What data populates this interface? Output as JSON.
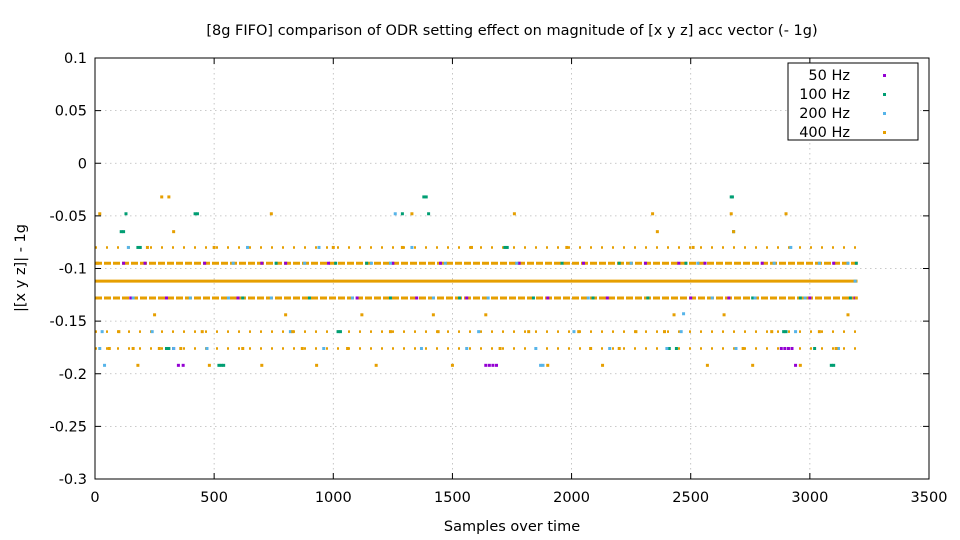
{
  "chart_data": {
    "type": "scatter",
    "title": "[8g FIFO] comparison of ODR setting effect on magnitude of [x y z] acc vector (- 1g)",
    "xlabel": "Samples over time",
    "ylabel": "|[x y z]| - 1g",
    "xlim": [
      0,
      3500
    ],
    "ylim": [
      -0.3,
      0.1
    ],
    "x_ticks": [
      0,
      500,
      1000,
      1500,
      2000,
      2500,
      3000,
      3500
    ],
    "y_ticks": [
      0.1,
      0.05,
      0,
      -0.05,
      -0.1,
      -0.15,
      -0.2,
      -0.25,
      -0.3
    ],
    "x_tick_labels": [
      "0",
      "500",
      "1000",
      "1500",
      "2000",
      "2500",
      "3000",
      "3500"
    ],
    "y_tick_labels": [
      "0.1",
      "0.05",
      "0",
      "-0.05",
      "-0.1",
      "-0.15",
      "-0.2",
      "-0.25",
      "-0.3"
    ],
    "grid": true,
    "legend_position": "top-right",
    "series": [
      {
        "name": "50 Hz",
        "color": "#9400d3",
        "points": [
          [
            120,
            -0.095
          ],
          [
            150,
            -0.128
          ],
          [
            210,
            -0.095
          ],
          [
            300,
            -0.128
          ],
          [
            330,
            -0.176
          ],
          [
            350,
            -0.192
          ],
          [
            370,
            -0.192
          ],
          [
            460,
            -0.095
          ],
          [
            600,
            -0.128
          ],
          [
            700,
            -0.095
          ],
          [
            800,
            -0.095
          ],
          [
            980,
            -0.095
          ],
          [
            1100,
            -0.128
          ],
          [
            1250,
            -0.095
          ],
          [
            1350,
            -0.128
          ],
          [
            1450,
            -0.095
          ],
          [
            1560,
            -0.128
          ],
          [
            1640,
            -0.192
          ],
          [
            1655,
            -0.192
          ],
          [
            1670,
            -0.192
          ],
          [
            1685,
            -0.192
          ],
          [
            1780,
            -0.095
          ],
          [
            1900,
            -0.128
          ],
          [
            2050,
            -0.095
          ],
          [
            2150,
            -0.128
          ],
          [
            2310,
            -0.095
          ],
          [
            2450,
            -0.095
          ],
          [
            2500,
            -0.128
          ],
          [
            2560,
            -0.095
          ],
          [
            2660,
            -0.128
          ],
          [
            2800,
            -0.095
          ],
          [
            2880,
            -0.176
          ],
          [
            2895,
            -0.176
          ],
          [
            2910,
            -0.176
          ],
          [
            2925,
            -0.176
          ],
          [
            2940,
            -0.192
          ],
          [
            3000,
            -0.128
          ],
          [
            3100,
            -0.095
          ],
          [
            3190,
            -0.128
          ]
        ]
      },
      {
        "name": "100 Hz",
        "color": "#009e73",
        "points": [
          [
            110,
            -0.065
          ],
          [
            120,
            -0.065
          ],
          [
            130,
            -0.048
          ],
          [
            180,
            -0.08
          ],
          [
            190,
            -0.08
          ],
          [
            300,
            -0.176
          ],
          [
            310,
            -0.176
          ],
          [
            420,
            -0.048
          ],
          [
            430,
            -0.048
          ],
          [
            520,
            -0.192
          ],
          [
            530,
            -0.192
          ],
          [
            540,
            -0.192
          ],
          [
            620,
            -0.128
          ],
          [
            760,
            -0.095
          ],
          [
            900,
            -0.128
          ],
          [
            1010,
            -0.095
          ],
          [
            1020,
            -0.16
          ],
          [
            1030,
            -0.16
          ],
          [
            1140,
            -0.095
          ],
          [
            1240,
            -0.128
          ],
          [
            1290,
            -0.048
          ],
          [
            1380,
            -0.032
          ],
          [
            1390,
            -0.032
          ],
          [
            1400,
            -0.048
          ],
          [
            1530,
            -0.128
          ],
          [
            1720,
            -0.08
          ],
          [
            1730,
            -0.08
          ],
          [
            1840,
            -0.128
          ],
          [
            1960,
            -0.095
          ],
          [
            2090,
            -0.128
          ],
          [
            2200,
            -0.095
          ],
          [
            2320,
            -0.128
          ],
          [
            2410,
            -0.176
          ],
          [
            2440,
            -0.176
          ],
          [
            2480,
            -0.095
          ],
          [
            2670,
            -0.032
          ],
          [
            2675,
            -0.032
          ],
          [
            2680,
            -0.065
          ],
          [
            2760,
            -0.128
          ],
          [
            2890,
            -0.16
          ],
          [
            2900,
            -0.16
          ],
          [
            2960,
            -0.128
          ],
          [
            3020,
            -0.176
          ],
          [
            3090,
            -0.192
          ],
          [
            3100,
            -0.192
          ],
          [
            3170,
            -0.128
          ],
          [
            3195,
            -0.095
          ]
        ]
      },
      {
        "name": "200 Hz",
        "color": "#56b4e9",
        "points": [
          [
            20,
            -0.176
          ],
          [
            30,
            -0.16
          ],
          [
            40,
            -0.192
          ],
          [
            140,
            -0.08
          ],
          [
            160,
            -0.128
          ],
          [
            240,
            -0.16
          ],
          [
            330,
            -0.176
          ],
          [
            400,
            -0.128
          ],
          [
            470,
            -0.176
          ],
          [
            560,
            -0.128
          ],
          [
            580,
            -0.095
          ],
          [
            640,
            -0.08
          ],
          [
            740,
            -0.128
          ],
          [
            820,
            -0.16
          ],
          [
            880,
            -0.095
          ],
          [
            940,
            -0.08
          ],
          [
            960,
            -0.176
          ],
          [
            1080,
            -0.128
          ],
          [
            1160,
            -0.095
          ],
          [
            1240,
            -0.095
          ],
          [
            1260,
            -0.048
          ],
          [
            1330,
            -0.08
          ],
          [
            1370,
            -0.176
          ],
          [
            1420,
            -0.128
          ],
          [
            1470,
            -0.095
          ],
          [
            1560,
            -0.176
          ],
          [
            1610,
            -0.16
          ],
          [
            1650,
            -0.128
          ],
          [
            1770,
            -0.095
          ],
          [
            1850,
            -0.176
          ],
          [
            1870,
            -0.192
          ],
          [
            1880,
            -0.192
          ],
          [
            2010,
            -0.16
          ],
          [
            2070,
            -0.128
          ],
          [
            2160,
            -0.176
          ],
          [
            2250,
            -0.095
          ],
          [
            2400,
            -0.176
          ],
          [
            2460,
            -0.16
          ],
          [
            2470,
            -0.143
          ],
          [
            2530,
            -0.095
          ],
          [
            2590,
            -0.128
          ],
          [
            2690,
            -0.176
          ],
          [
            2770,
            -0.128
          ],
          [
            2850,
            -0.095
          ],
          [
            2920,
            -0.08
          ],
          [
            2940,
            -0.16
          ],
          [
            2980,
            -0.128
          ],
          [
            3040,
            -0.095
          ],
          [
            3120,
            -0.176
          ],
          [
            3160,
            -0.095
          ],
          [
            3190,
            -0.112
          ]
        ]
      },
      {
        "name": "400 Hz",
        "color": "#e69f00",
        "points": [
          [
            10,
            -0.095
          ],
          [
            20,
            -0.048
          ],
          [
            60,
            -0.176
          ],
          [
            100,
            -0.16
          ],
          [
            160,
            -0.176
          ],
          [
            180,
            -0.192
          ],
          [
            220,
            -0.08
          ],
          [
            250,
            -0.144
          ],
          [
            270,
            -0.176
          ],
          [
            280,
            -0.032
          ],
          [
            310,
            -0.032
          ],
          [
            330,
            -0.065
          ],
          [
            360,
            -0.176
          ],
          [
            450,
            -0.16
          ],
          [
            480,
            -0.192
          ],
          [
            500,
            -0.08
          ],
          [
            620,
            -0.176
          ],
          [
            700,
            -0.192
          ],
          [
            740,
            -0.048
          ],
          [
            800,
            -0.144
          ],
          [
            830,
            -0.16
          ],
          [
            870,
            -0.176
          ],
          [
            930,
            -0.192
          ],
          [
            1000,
            -0.08
          ],
          [
            1060,
            -0.176
          ],
          [
            1120,
            -0.144
          ],
          [
            1180,
            -0.192
          ],
          [
            1240,
            -0.16
          ],
          [
            1290,
            -0.08
          ],
          [
            1330,
            -0.048
          ],
          [
            1420,
            -0.144
          ],
          [
            1440,
            -0.16
          ],
          [
            1500,
            -0.192
          ],
          [
            1580,
            -0.08
          ],
          [
            1640,
            -0.144
          ],
          [
            1700,
            -0.176
          ],
          [
            1760,
            -0.048
          ],
          [
            1820,
            -0.16
          ],
          [
            1900,
            -0.192
          ],
          [
            1980,
            -0.08
          ],
          [
            2030,
            -0.16
          ],
          [
            2080,
            -0.176
          ],
          [
            2130,
            -0.192
          ],
          [
            2200,
            -0.176
          ],
          [
            2270,
            -0.16
          ],
          [
            2340,
            -0.048
          ],
          [
            2360,
            -0.065
          ],
          [
            2390,
            -0.16
          ],
          [
            2430,
            -0.144
          ],
          [
            2510,
            -0.08
          ],
          [
            2570,
            -0.192
          ],
          [
            2640,
            -0.144
          ],
          [
            2670,
            -0.048
          ],
          [
            2680,
            -0.065
          ],
          [
            2720,
            -0.176
          ],
          [
            2760,
            -0.192
          ],
          [
            2840,
            -0.16
          ],
          [
            2900,
            -0.048
          ],
          [
            2960,
            -0.192
          ],
          [
            3040,
            -0.16
          ],
          [
            3110,
            -0.176
          ],
          [
            3160,
            -0.144
          ],
          [
            3195,
            -0.128
          ]
        ]
      }
    ],
    "bands": [
      {
        "y": -0.112,
        "x_start": 0,
        "x_end": 3200,
        "color": "#e69f00",
        "density": "solid"
      },
      {
        "y": -0.095,
        "x_start": 0,
        "x_end": 3200,
        "color": "#e69f00",
        "density": "dense"
      },
      {
        "y": -0.128,
        "x_start": 0,
        "x_end": 3200,
        "color": "#e69f00",
        "density": "dense"
      },
      {
        "y": -0.08,
        "x_start": 0,
        "x_end": 3200,
        "color": "#e69f00",
        "density": "sparse"
      },
      {
        "y": -0.16,
        "x_start": 0,
        "x_end": 3200,
        "color": "#e69f00",
        "density": "sparse"
      },
      {
        "y": -0.176,
        "x_start": 0,
        "x_end": 3200,
        "color": "#e69f00",
        "density": "sparse"
      }
    ]
  }
}
